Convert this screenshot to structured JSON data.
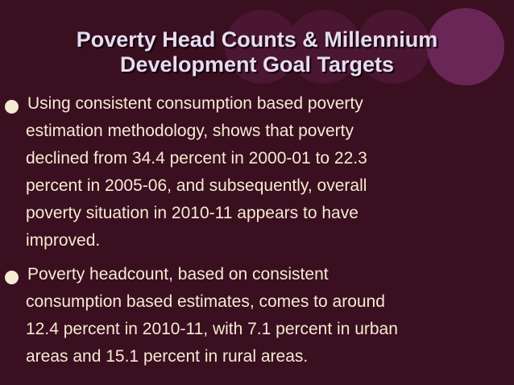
{
  "title": {
    "lines": [
      "Poverty Head Counts & Millennium",
      "Development Goal Targets"
    ]
  },
  "bullets": [
    {
      "lines": [
        "Using consistent consumption based poverty",
        "estimation methodology, shows that poverty",
        "declined from 34.4 percent in 2000-01 to 22.3",
        "percent in 2005-06, and subsequently, overall",
        "poverty situation in 2010-11 appears to have",
        "improved."
      ]
    },
    {
      "lines": [
        "Poverty headcount, based on consistent",
        "consumption based estimates, comes to around",
        "12.4 percent in 2010-11, with 7.1 percent in urban",
        "areas and 15.1 percent in rural areas."
      ]
    }
  ]
}
